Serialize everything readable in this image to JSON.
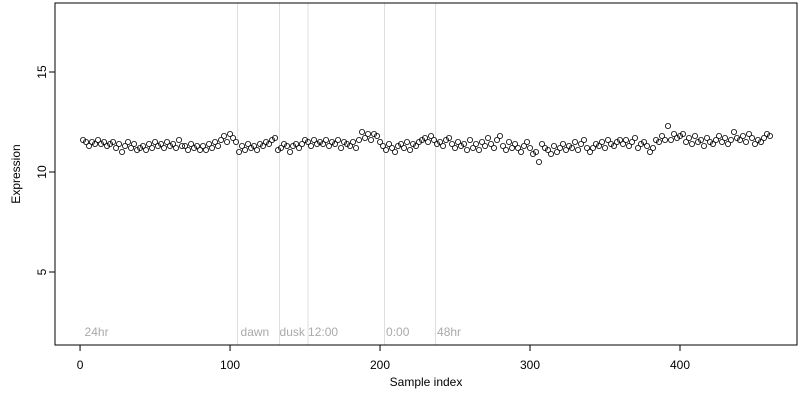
{
  "chart_data": {
    "type": "scatter",
    "xlabel": "Sample index",
    "ylabel": "Expression",
    "xlim": [
      -16.7,
      478
    ],
    "ylim": [
      1.35,
      18.45
    ],
    "xticks": [
      0,
      100,
      200,
      300,
      400
    ],
    "yticks": [
      5,
      10,
      15
    ],
    "vlines": [
      105,
      133,
      152,
      203,
      237
    ],
    "annotations": [
      {
        "x": 3,
        "y": 2,
        "label": "24hr"
      },
      {
        "x": 107,
        "y": 2,
        "label": "dawn"
      },
      {
        "x": 133,
        "y": 2,
        "label": "dusk"
      },
      {
        "x": 152,
        "y": 2,
        "label": "12:00"
      },
      {
        "x": 204,
        "y": 2,
        "label": "0:00"
      },
      {
        "x": 238,
        "y": 2,
        "label": "48hr"
      }
    ],
    "color": "#000000",
    "x": [
      2,
      4,
      6,
      8,
      10,
      12,
      14,
      16,
      18,
      20,
      22,
      24,
      26,
      28,
      30,
      32,
      34,
      36,
      38,
      40,
      42,
      44,
      46,
      48,
      50,
      52,
      54,
      56,
      58,
      60,
      62,
      64,
      66,
      68,
      70,
      72,
      74,
      76,
      78,
      80,
      82,
      84,
      86,
      88,
      90,
      92,
      94,
      96,
      98,
      100,
      102,
      104,
      106,
      108,
      110,
      112,
      114,
      116,
      118,
      120,
      122,
      124,
      126,
      128,
      130,
      132,
      134,
      136,
      138,
      140,
      142,
      144,
      146,
      148,
      150,
      152,
      154,
      156,
      158,
      160,
      162,
      164,
      166,
      168,
      170,
      172,
      174,
      176,
      178,
      180,
      182,
      184,
      186,
      188,
      190,
      192,
      194,
      196,
      198,
      200,
      202,
      204,
      206,
      208,
      210,
      212,
      214,
      216,
      218,
      220,
      222,
      224,
      226,
      228,
      230,
      232,
      234,
      236,
      238,
      240,
      242,
      244,
      246,
      248,
      250,
      252,
      254,
      256,
      258,
      260,
      262,
      264,
      266,
      268,
      270,
      272,
      274,
      276,
      278,
      280,
      282,
      284,
      286,
      288,
      290,
      292,
      294,
      296,
      298,
      300,
      302,
      304,
      306,
      308,
      310,
      312,
      314,
      316,
      318,
      320,
      322,
      324,
      326,
      328,
      330,
      332,
      334,
      336,
      338,
      340,
      342,
      344,
      346,
      348,
      350,
      352,
      354,
      356,
      358,
      360,
      362,
      364,
      366,
      368,
      370,
      372,
      374,
      376,
      378,
      380,
      382,
      384,
      386,
      388,
      390,
      392,
      394,
      396,
      398,
      400,
      402,
      404,
      406,
      408,
      410,
      412,
      414,
      416,
      418,
      420,
      422,
      424,
      426,
      428,
      430,
      432,
      434,
      436,
      438,
      440,
      442,
      444,
      446,
      448,
      450,
      452,
      454,
      456,
      458,
      460
    ],
    "values": [
      11.6,
      11.5,
      11.3,
      11.5,
      11.4,
      11.6,
      11.4,
      11.5,
      11.3,
      11.4,
      11.5,
      11.2,
      11.4,
      11.0,
      11.3,
      11.5,
      11.2,
      11.4,
      11.1,
      11.2,
      11.3,
      11.1,
      11.4,
      11.2,
      11.5,
      11.3,
      11.4,
      11.2,
      11.5,
      11.3,
      11.4,
      11.2,
      11.6,
      11.3,
      11.3,
      11.1,
      11.4,
      11.2,
      11.3,
      11.1,
      11.3,
      11.1,
      11.4,
      11.2,
      11.5,
      11.3,
      11.6,
      11.8,
      11.5,
      11.9,
      11.7,
      11.5,
      11.0,
      11.3,
      11.1,
      11.4,
      11.2,
      11.3,
      11.1,
      11.4,
      11.3,
      11.5,
      11.4,
      11.6,
      11.7,
      11.1,
      11.2,
      11.4,
      11.3,
      11.0,
      11.3,
      11.4,
      11.2,
      11.4,
      11.6,
      11.5,
      11.3,
      11.6,
      11.4,
      11.5,
      11.4,
      11.6,
      11.3,
      11.5,
      11.4,
      11.6,
      11.2,
      11.5,
      11.4,
      11.3,
      11.5,
      11.2,
      11.6,
      12.0,
      11.7,
      11.9,
      11.6,
      11.9,
      11.8,
      11.5,
      11.3,
      11.1,
      11.4,
      11.2,
      11.0,
      11.3,
      11.4,
      11.2,
      11.5,
      11.1,
      11.4,
      11.3,
      11.5,
      11.6,
      11.7,
      11.5,
      11.8,
      11.6,
      11.4,
      11.5,
      11.3,
      11.6,
      11.7,
      11.4,
      11.2,
      11.5,
      11.3,
      11.4,
      11.1,
      11.6,
      11.2,
      11.4,
      11.1,
      11.5,
      11.3,
      11.7,
      11.4,
      11.2,
      11.6,
      11.8,
      11.3,
      11.1,
      11.5,
      11.2,
      11.4,
      11.2,
      11.0,
      11.3,
      11.5,
      11.2,
      10.9,
      11.0,
      10.5,
      11.4,
      11.2,
      11.1,
      10.9,
      11.3,
      11.0,
      11.2,
      11.4,
      11.1,
      11.3,
      11.2,
      11.5,
      11.1,
      11.4,
      11.6,
      11.2,
      11.0,
      11.2,
      11.4,
      11.3,
      11.5,
      11.2,
      11.6,
      11.4,
      11.3,
      11.5,
      11.6,
      11.4,
      11.6,
      11.3,
      11.5,
      11.7,
      11.2,
      11.4,
      11.5,
      11.3,
      11.0,
      11.2,
      11.6,
      11.5,
      11.8,
      11.6,
      12.3,
      11.6,
      11.9,
      11.7,
      11.8,
      11.9,
      11.5,
      11.7,
      11.4,
      11.8,
      11.5,
      11.6,
      11.3,
      11.7,
      11.5,
      11.4,
      11.6,
      11.8,
      11.5,
      11.7,
      11.4,
      11.6,
      12.0,
      11.7,
      11.6,
      11.8,
      11.5,
      11.9,
      11.7,
      11.4,
      11.6,
      11.5,
      11.7,
      11.9,
      11.8
    ]
  }
}
